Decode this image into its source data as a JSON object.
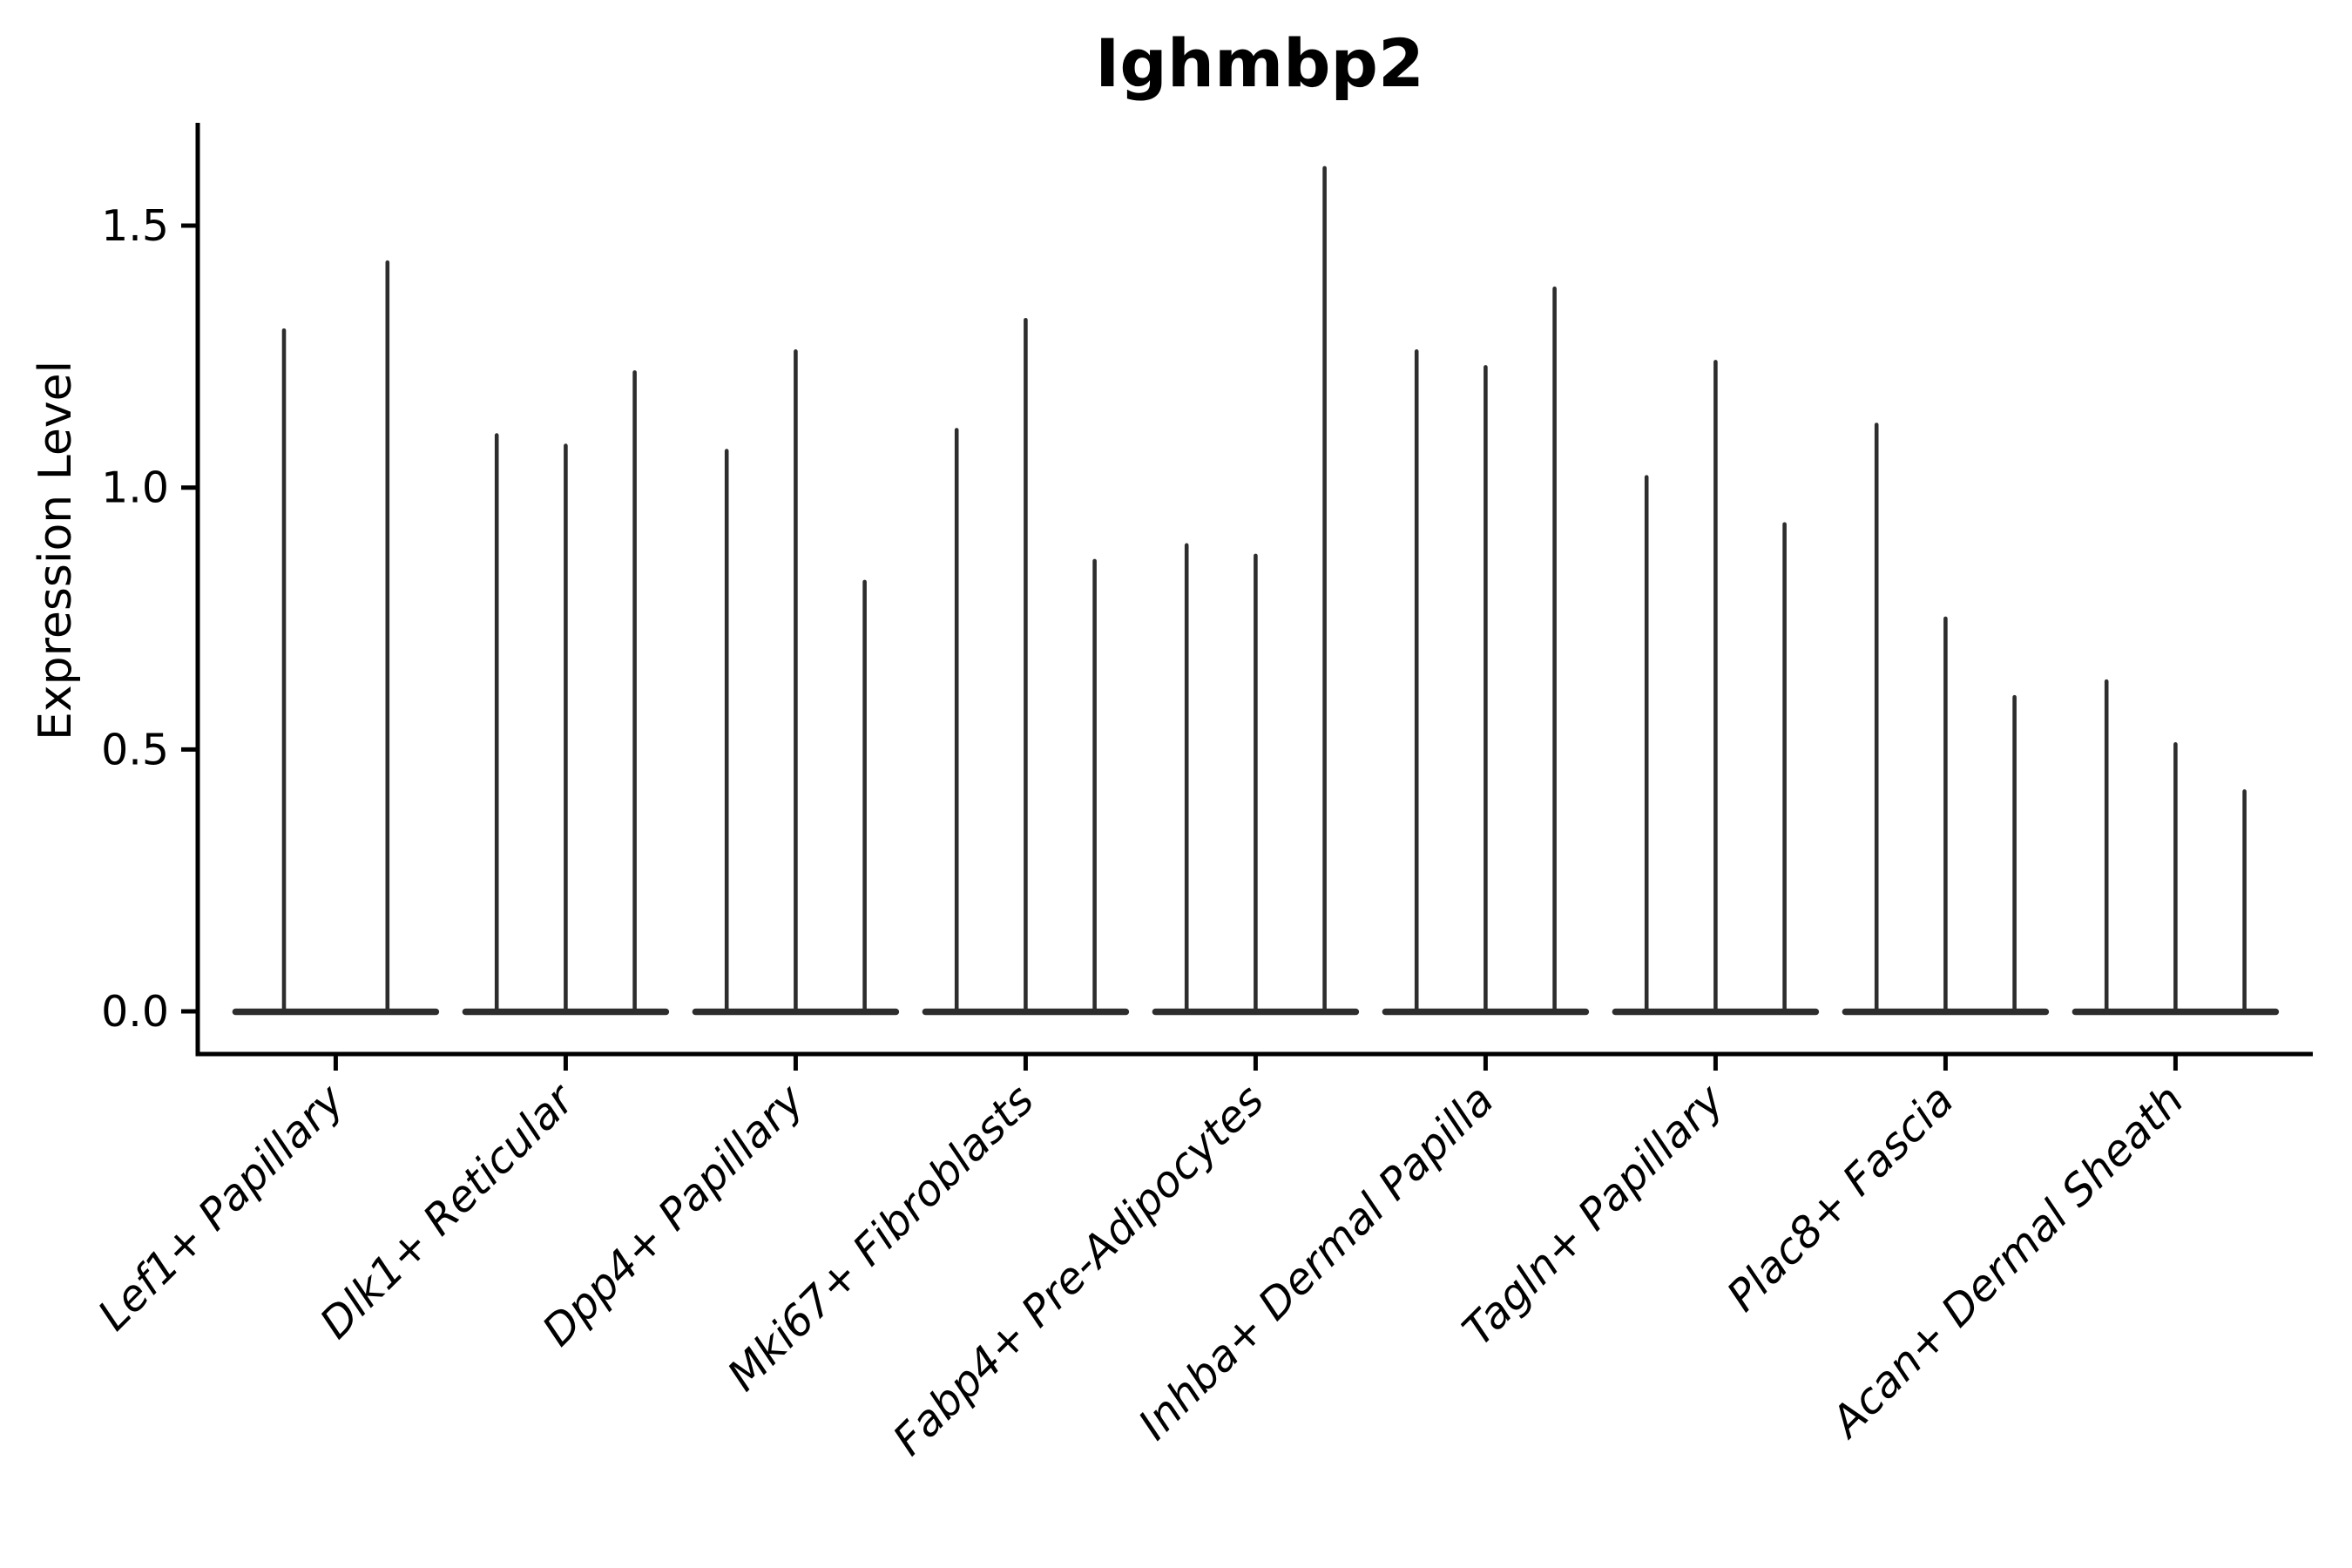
{
  "chart_data": {
    "type": "violin",
    "title": "Ighmbp2",
    "xlabel": "",
    "ylabel": "Expression Level",
    "ylim": [
      -0.08,
      1.69
    ],
    "grid": false,
    "legend": "none",
    "yticks": [
      0.0,
      0.5,
      1.0,
      1.5
    ],
    "ytick_labels": [
      "0.0",
      "0.5",
      "1.0",
      "1.5"
    ],
    "categories": [
      "Lef1+ Papillary",
      "Dlk1+ Reticular",
      "Dpp4+ Papillary",
      "Mki67+ Fibroblasts",
      "Fabp4+ Pre-Adipocytes",
      "Inhba+ Dermal Papilla",
      "Tagln+ Papillary",
      "Plac8+ Fascia",
      "Acan+ Dermal Sheath"
    ],
    "violin_max_per_category": [
      [
        1.3,
        1.43
      ],
      [
        1.1,
        1.08,
        1.22
      ],
      [
        1.07,
        1.26,
        0.82
      ],
      [
        1.11,
        1.32,
        0.86
      ],
      [
        0.89,
        0.87,
        1.61
      ],
      [
        1.26,
        1.23,
        1.38
      ],
      [
        1.02,
        1.24,
        0.93
      ],
      [
        1.12,
        0.75,
        0.6
      ],
      [
        0.63,
        0.51,
        0.42
      ]
    ],
    "violin_baseline_value": 0.0,
    "colors": {
      "violin": "#2d2d2d",
      "axis": "#000000",
      "text": "#000000",
      "background": "#ffffff"
    }
  }
}
